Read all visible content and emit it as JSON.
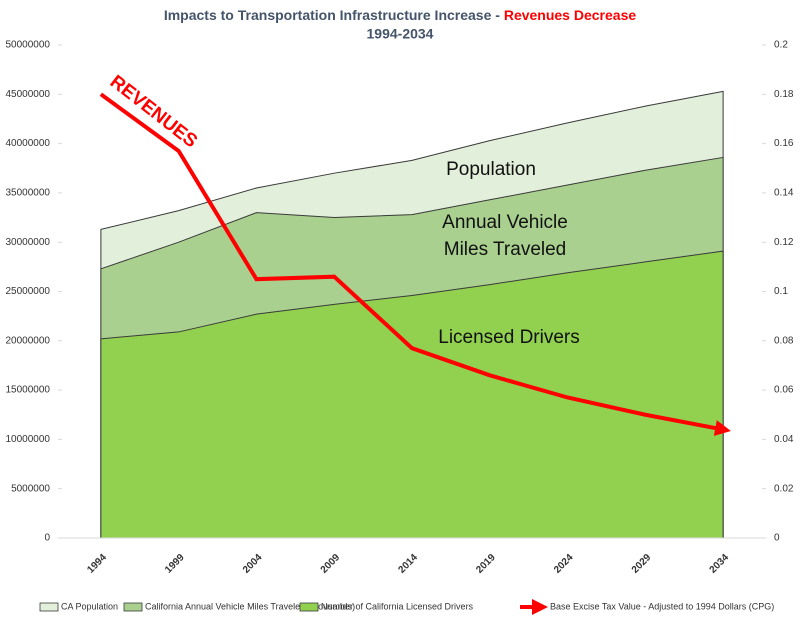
{
  "chart_data": {
    "type": "area",
    "title": "Impacts to Transportation Infrastructure Increase -",
    "title_highlight": "Revenues Decrease",
    "subtitle": "1994-2034",
    "categories": [
      "1994",
      "1999",
      "2004",
      "2009",
      "2014",
      "2019",
      "2024",
      "2029",
      "2034"
    ],
    "series": [
      {
        "name": "CA Population",
        "color": "#e2efda",
        "values": [
          31300000,
          33200000,
          35500000,
          37000000,
          38300000,
          40300000,
          42100000,
          43800000,
          45300000
        ]
      },
      {
        "name": "California Annual Vehicle Miles Traveled (thousands)",
        "color": "#a9d08e",
        "values": [
          27300000,
          30000000,
          33000000,
          32500000,
          32800000,
          34300000,
          35800000,
          37300000,
          38600000
        ]
      },
      {
        "name": "Number of California Licensed Drivers",
        "color": "#92d050",
        "values": [
          20200000,
          20900000,
          22700000,
          23700000,
          24600000,
          25700000,
          26900000,
          28000000,
          29100000
        ]
      },
      {
        "name": "Base Excise Tax Value - Adjusted to 1994 Dollars (CPG)",
        "color": "#ff0000",
        "type": "line",
        "axis": "y2",
        "values": [
          0.18,
          0.157,
          0.105,
          0.106,
          0.077,
          0.066,
          0.057,
          0.05,
          0.044
        ]
      }
    ],
    "ylim": [
      0,
      50000000
    ],
    "yticks": [
      0,
      5000000,
      10000000,
      15000000,
      20000000,
      25000000,
      30000000,
      35000000,
      40000000,
      45000000,
      50000000
    ],
    "y2lim": [
      0,
      0.2
    ],
    "y2ticks": [
      0,
      0.02,
      0.04,
      0.06,
      0.08,
      0.1,
      0.12,
      0.14,
      0.16,
      0.18,
      0.2
    ],
    "annotations": [
      "REVENUES",
      "Population",
      "Annual Vehicle",
      "Miles Traveled",
      "Licensed Drivers"
    ],
    "grid": false,
    "legend": "bottom"
  }
}
